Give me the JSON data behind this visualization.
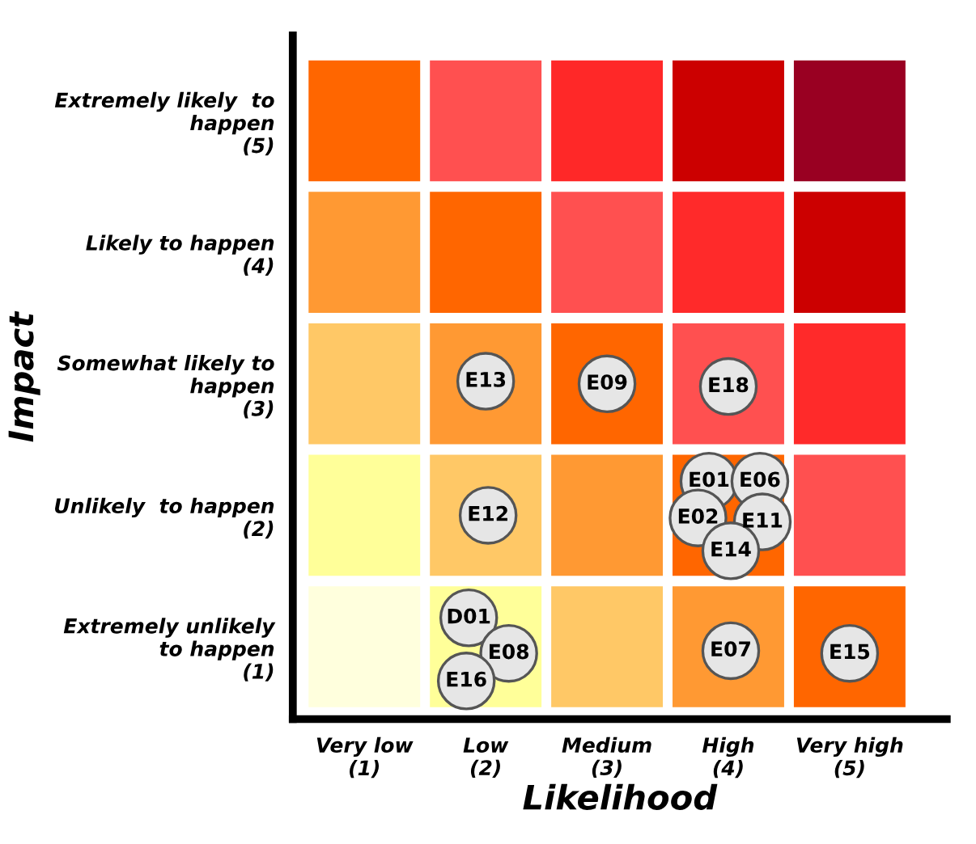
{
  "chart_data": {
    "type": "scatter",
    "xlabel": "Likelihood",
    "ylabel": "Impact",
    "xlim": [
      0.41,
      5.8
    ],
    "ylim": [
      0.45,
      5.65
    ],
    "xticks": [
      {
        "value": 1,
        "label": "Very low\n(1)"
      },
      {
        "value": 2,
        "label": "Low\n(2)"
      },
      {
        "value": 3,
        "label": "Medium\n(3)"
      },
      {
        "value": 4,
        "label": "High\n(4)"
      },
      {
        "value": 5,
        "label": "Very high\n(5)"
      }
    ],
    "yticks": [
      {
        "value": 1,
        "label": "Extremely unlikely\nto happen\n(1)"
      },
      {
        "value": 2,
        "label": "Unlikely  to happen\n(2)"
      },
      {
        "value": 3,
        "label": "Somewhat likely to\nhappen\n(3)"
      },
      {
        "value": 4,
        "label": "Likely to happen\n(4)"
      },
      {
        "value": 5,
        "label": "Extremely likely  to\nhappen\n(5)"
      }
    ],
    "series": [
      {
        "color": "#e6e6e6",
        "marker": "circle",
        "x": [
          2.0,
          3.0,
          4.0,
          2.02,
          3.84,
          4.26,
          3.75,
          4.28,
          4.02,
          1.86,
          2.19,
          1.84,
          4.02,
          5.0
        ],
        "values": [
          3.02,
          3.0,
          2.98,
          2.0,
          2.26,
          2.26,
          1.98,
          1.95,
          1.73,
          1.22,
          0.95,
          0.74,
          0.97,
          0.95
        ]
      }
    ],
    "annotations": [
      {
        "text": "E13",
        "x": 2.0,
        "y": 3.02
      },
      {
        "text": "E09",
        "x": 3.0,
        "y": 3.0
      },
      {
        "text": "E18",
        "x": 4.0,
        "y": 2.98
      },
      {
        "text": "E12",
        "x": 2.02,
        "y": 2.0
      },
      {
        "text": "E01",
        "x": 3.84,
        "y": 2.26
      },
      {
        "text": "E06",
        "x": 4.26,
        "y": 2.26
      },
      {
        "text": "E02",
        "x": 3.75,
        "y": 1.98
      },
      {
        "text": "E11",
        "x": 4.28,
        "y": 1.95
      },
      {
        "text": "E14",
        "x": 4.02,
        "y": 1.73
      },
      {
        "text": "D01",
        "x": 1.86,
        "y": 1.22
      },
      {
        "text": "E08",
        "x": 2.19,
        "y": 0.95
      },
      {
        "text": "E16",
        "x": 1.84,
        "y": 0.74
      },
      {
        "text": "E07",
        "x": 4.02,
        "y": 0.97
      },
      {
        "text": "E15",
        "x": 5.0,
        "y": 0.95
      }
    ],
    "grid": false
  }
}
